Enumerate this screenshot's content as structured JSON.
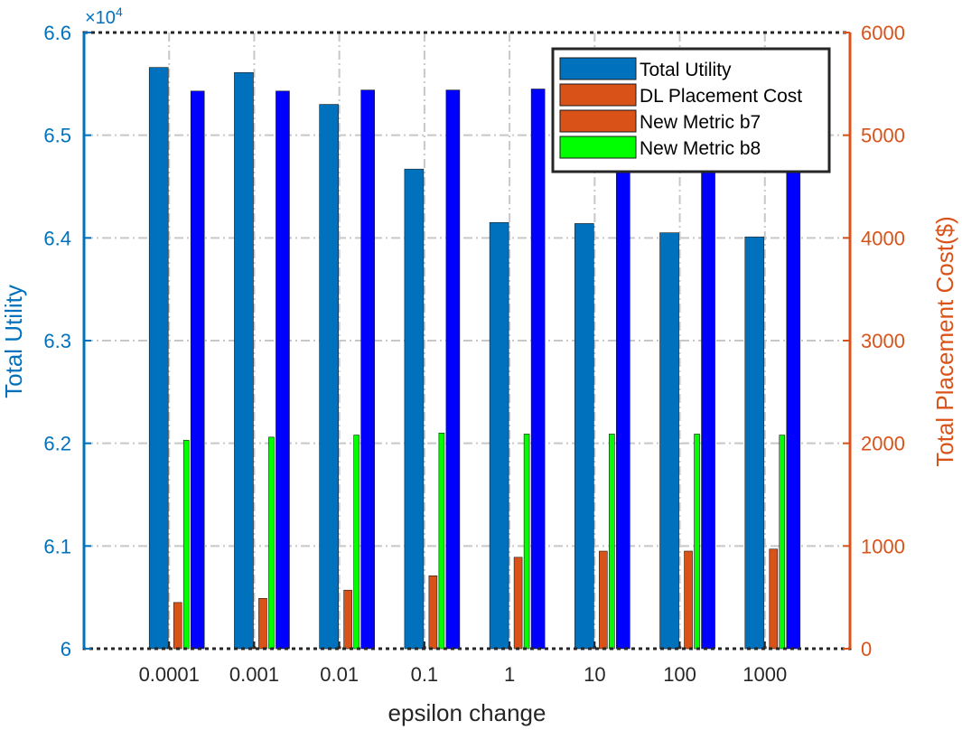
{
  "colors": {
    "left_axis": "#0072BD",
    "right_axis": "#D95319",
    "total_utility": "#0072BD",
    "second_utility_bar": "#0000FF",
    "dl_placement_cost": "#D95319",
    "new_metric_b7": "#D95319",
    "new_metric_b8": "#00FF00",
    "grid": "#C8C8C8",
    "axes": "#262626"
  },
  "chart_data": {
    "type": "bar",
    "xlabel": "epsilon change",
    "ylabel_left": "Total Utility",
    "ylabel_right": "Total Placement Cost($)",
    "left_exponent_label": "×10",
    "left_exponent_power": "4",
    "categories": [
      "0.0001",
      "0.001",
      "0.01",
      "0.1",
      "1",
      "10",
      "100",
      "1000"
    ],
    "ylim_left": [
      60000,
      66000
    ],
    "yticks_left": [
      60000,
      61000,
      62000,
      63000,
      64000,
      65000,
      66000
    ],
    "ytick_labels_left": [
      "6",
      "6.1",
      "6.2",
      "6.3",
      "6.4",
      "6.5",
      "6.6"
    ],
    "ylim_right": [
      0,
      6000
    ],
    "yticks_right": [
      0,
      1000,
      2000,
      3000,
      4000,
      5000,
      6000
    ],
    "ytick_labels_right": [
      "0",
      "1000",
      "2000",
      "3000",
      "4000",
      "5000",
      "6000"
    ],
    "grid": true,
    "legend_position": "top-right",
    "legend": [
      "Total Utility",
      "DL Placement Cost",
      "New Metric b7",
      "New Metric b8"
    ],
    "series": [
      {
        "name": "Total Utility",
        "axis": "left",
        "color_key": "total_utility",
        "values": [
          65660,
          65610,
          65300,
          64670,
          64150,
          64140,
          64050,
          64010
        ]
      },
      {
        "axis": "left",
        "color_key": "second_utility_bar",
        "values": [
          65430,
          65430,
          65440,
          65440,
          65450,
          65450,
          65450,
          65450
        ]
      },
      {
        "name": "DL Placement Cost",
        "axis": "right",
        "color_key": "dl_placement_cost",
        "values": [
          20,
          20,
          20,
          20,
          20,
          20,
          20,
          20
        ]
      },
      {
        "name": "New Metric b7",
        "axis": "right",
        "color_key": "new_metric_b7",
        "values": [
          450,
          490,
          570,
          710,
          890,
          950,
          950,
          970
        ]
      },
      {
        "name": "New Metric b8",
        "axis": "right",
        "color_key": "new_metric_b8",
        "values": [
          2030,
          2060,
          2080,
          2100,
          2090,
          2090,
          2090,
          2080
        ]
      }
    ]
  }
}
